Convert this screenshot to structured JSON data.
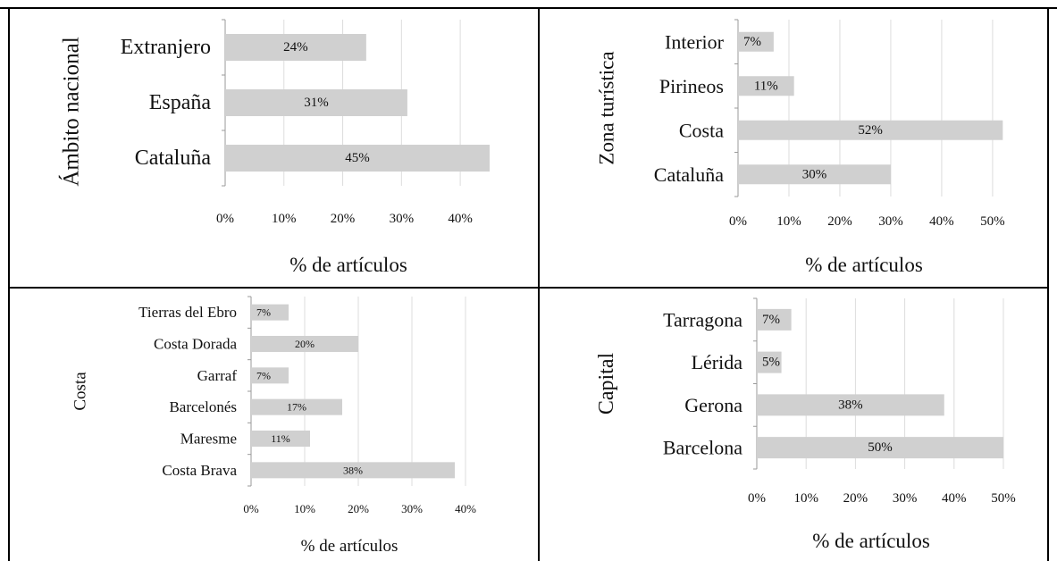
{
  "chart_data": [
    {
      "type": "bar",
      "orientation": "horizontal",
      "ylabel": "Ámbito nacional",
      "xlabel": "% de artículos",
      "categories": [
        "Extranjero",
        "España",
        "Cataluña"
      ],
      "values": [
        24,
        31,
        45
      ],
      "data_labels": [
        "24%",
        "31%",
        "45%"
      ],
      "xlim": [
        0,
        45
      ],
      "xticks": [
        "0%",
        "10%",
        "20%",
        "30%",
        "40%"
      ],
      "xtick_values": [
        0,
        10,
        20,
        30,
        40
      ],
      "grid": true,
      "bar_color": "#d0d0d0"
    },
    {
      "type": "bar",
      "orientation": "horizontal",
      "ylabel": "Zona turística",
      "xlabel": "% de artículos",
      "categories": [
        "Interior",
        "Pirineos",
        "Costa",
        "Cataluña"
      ],
      "values": [
        7,
        11,
        52,
        30
      ],
      "data_labels": [
        "7%",
        "11%",
        "52%",
        "30%"
      ],
      "xlim": [
        0,
        53
      ],
      "xticks": [
        "0%",
        "10%",
        "20%",
        "30%",
        "40%",
        "50%"
      ],
      "xtick_values": [
        0,
        10,
        20,
        30,
        40,
        50
      ],
      "grid": true,
      "bar_color": "#d0d0d0"
    },
    {
      "type": "bar",
      "orientation": "horizontal",
      "ylabel": "Costa",
      "xlabel": "% de artículos",
      "categories": [
        "Tierras del Ebro",
        "Costa Dorada",
        "Garraf",
        "Barcelonés",
        "Maresme",
        "Costa Brava"
      ],
      "values": [
        7,
        20,
        7,
        17,
        11,
        38
      ],
      "data_labels": [
        "7%",
        "20%",
        "7%",
        "17%",
        "11%",
        "38%"
      ],
      "xlim": [
        0,
        40
      ],
      "xticks": [
        "0%",
        "10%",
        "20%",
        "30%",
        "40%"
      ],
      "xtick_values": [
        0,
        10,
        20,
        30,
        40
      ],
      "grid": true,
      "bar_color": "#d0d0d0"
    },
    {
      "type": "bar",
      "orientation": "horizontal",
      "ylabel": "Capital",
      "xlabel": "% de artículos",
      "categories": [
        "Tarragona",
        "Lérida",
        "Gerona",
        "Barcelona"
      ],
      "values": [
        7,
        5,
        38,
        50
      ],
      "data_labels": [
        "7%",
        "5%",
        "38%",
        "50%"
      ],
      "xlim": [
        0,
        50
      ],
      "xticks": [
        "0%",
        "10%",
        "20%",
        "30%",
        "40%",
        "50%"
      ],
      "xtick_values": [
        0,
        10,
        20,
        30,
        40,
        50
      ],
      "grid": true,
      "bar_color": "#d0d0d0"
    }
  ]
}
